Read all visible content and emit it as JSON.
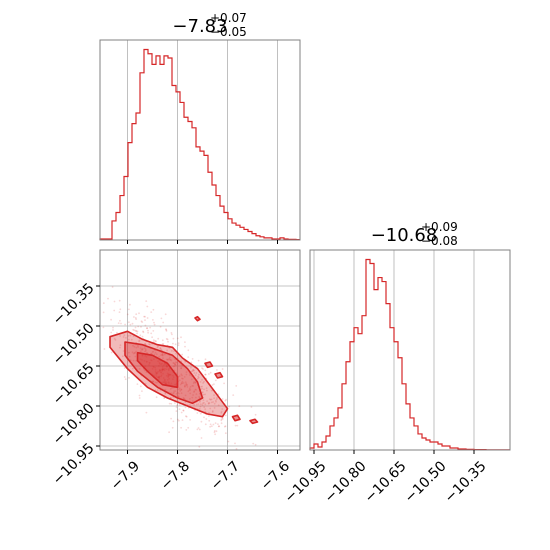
{
  "chart_data": {
    "type": "corner",
    "color": "#d62728",
    "grid": true,
    "parameters": [
      {
        "range": [
          -7.955,
          -7.555
        ],
        "ticks": [
          -7.9,
          -7.8,
          -7.7,
          -7.6
        ],
        "tick_labels": [
          "−7.9",
          "−7.8",
          "−7.7",
          "−7.6"
        ],
        "title": {
          "value": "−7.83",
          "plus": "+0.07",
          "minus": "−0.05"
        }
      },
      {
        "range": [
          -10.965,
          -10.215
        ],
        "ticks": [
          -10.95,
          -10.8,
          -10.65,
          -10.5,
          -10.35
        ],
        "tick_labels": [
          "−10.95",
          "−10.80",
          "−10.65",
          "−10.50",
          "−10.35"
        ],
        "title": {
          "value": "−10.68",
          "plus": "+0.09",
          "minus": "−0.08"
        }
      }
    ],
    "histograms": [
      {
        "param": 0,
        "bin_width": 0.008,
        "bin_edges_start": -7.955,
        "counts": [
          0.5,
          0.5,
          0.5,
          9,
          13,
          21,
          30,
          46,
          55,
          60,
          79,
          90,
          88,
          83,
          87,
          83,
          87,
          86,
          73,
          70,
          65,
          58,
          56,
          53,
          44,
          42,
          40,
          32,
          26,
          21,
          16,
          13,
          10,
          8,
          7,
          6,
          5,
          4,
          3,
          2,
          1.5,
          1,
          1,
          0.5,
          0.5,
          1,
          0.5,
          0.3,
          0.3,
          0.2
        ]
      },
      {
        "param": 1,
        "bin_width": 0.015,
        "bin_edges_start": -10.965,
        "counts": [
          1,
          3,
          1.5,
          4,
          7,
          12,
          16,
          21,
          33,
          44,
          54,
          61,
          58,
          67,
          95,
          93,
          80,
          86,
          84,
          73,
          61,
          54,
          46,
          33,
          23,
          16,
          12,
          8,
          6,
          5,
          4,
          4,
          3,
          2,
          2,
          1,
          1,
          0.5,
          0.5,
          0.3,
          0.3,
          0.2,
          0.2,
          0.2,
          0.1,
          0.1,
          0.1,
          0.1,
          0.1,
          0.1
        ]
      }
    ]
  }
}
